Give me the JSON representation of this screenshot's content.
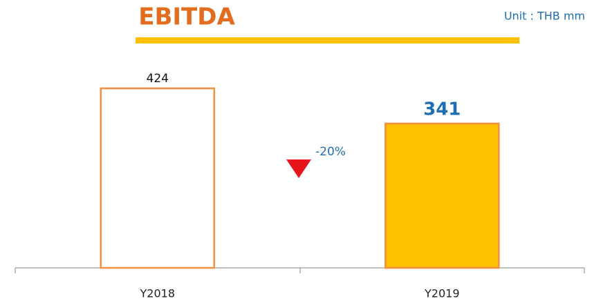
{
  "chart_data": {
    "type": "bar",
    "title": "EBITDA",
    "subtitle": "Unit : THB mm",
    "categories": [
      "Y2018",
      "Y2019"
    ],
    "values": [
      424,
      341
    ],
    "colors": [
      "#ffffff",
      "#ffc000"
    ],
    "edge_color": "#f0913e",
    "annotation": "-20%"
  }
}
